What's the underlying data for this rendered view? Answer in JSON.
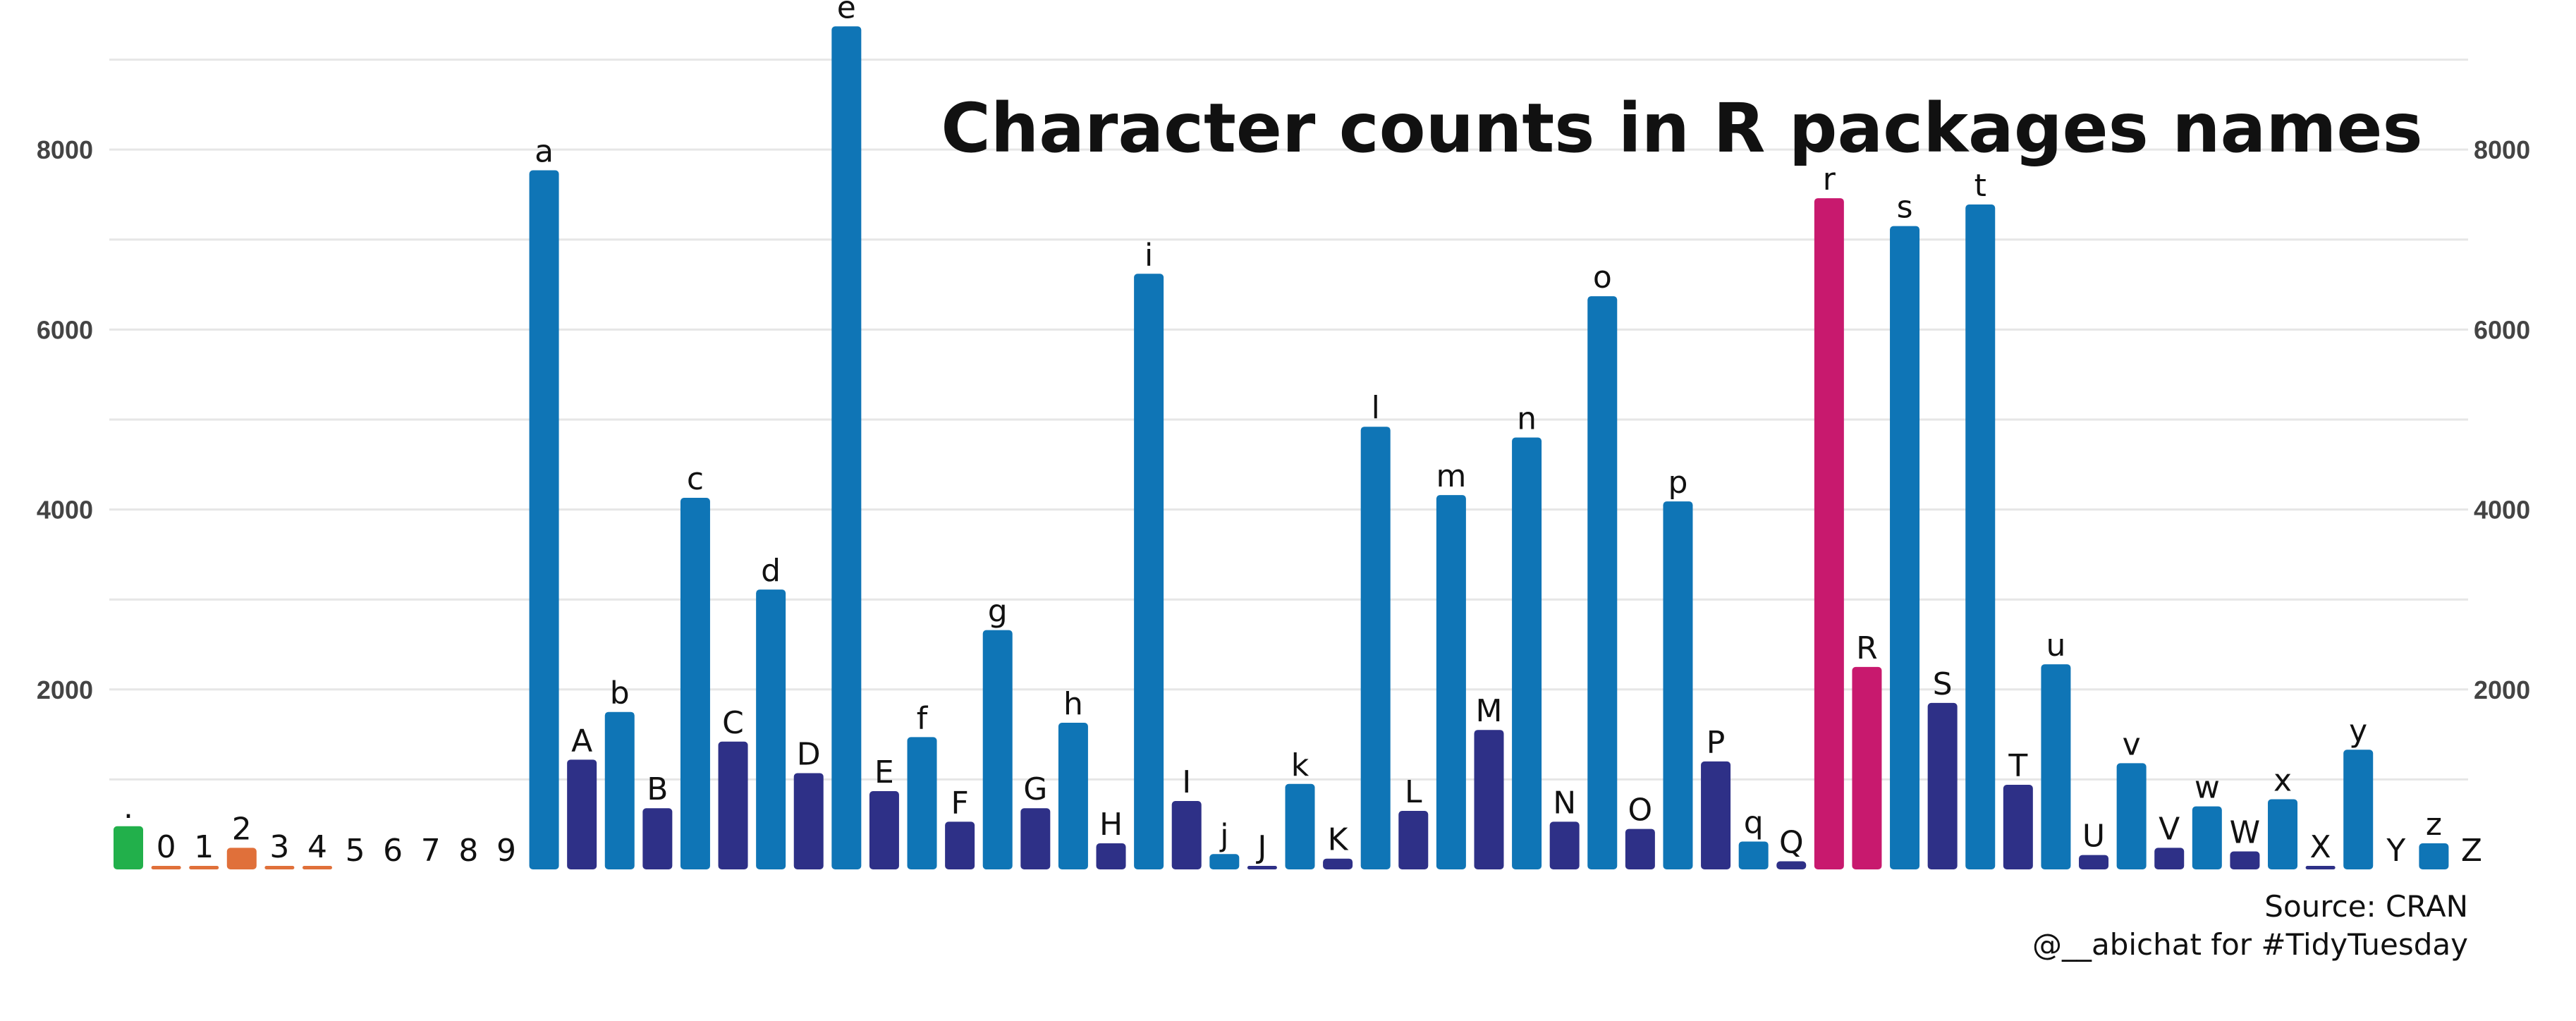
{
  "chart_data": {
    "type": "bar",
    "title": "Character counts in R packages names",
    "caption_source": "Source: CRAN",
    "caption_credit": "@__abichat for #TidyTuesday",
    "xlabel": "",
    "ylabel": "",
    "ylim": [
      0,
      9600
    ],
    "y_ticks": [
      "2000",
      "4000",
      "6000",
      "8000"
    ],
    "y_tick_values": [
      2000,
      4000,
      6000,
      8000
    ],
    "grid": true,
    "colors": {
      "punctuation": "#22b04b",
      "digit": "#e0703a",
      "lowercase": "#0f75b6",
      "uppercase": "#2e3087",
      "highlight": "#c8196e"
    },
    "bars": [
      {
        "label": ".",
        "value": 480,
        "group": "punctuation"
      },
      {
        "label": "0",
        "value": 18,
        "group": "digit"
      },
      {
        "label": "1",
        "value": 28,
        "group": "digit"
      },
      {
        "label": "2",
        "value": 240,
        "group": "digit"
      },
      {
        "label": "3",
        "value": 22,
        "group": "digit"
      },
      {
        "label": "4",
        "value": 22,
        "group": "digit"
      },
      {
        "label": "5",
        "value": 0,
        "group": "digit"
      },
      {
        "label": "6",
        "value": 0,
        "group": "digit"
      },
      {
        "label": "7",
        "value": 0,
        "group": "digit"
      },
      {
        "label": "8",
        "value": 0,
        "group": "digit"
      },
      {
        "label": "9",
        "value": 0,
        "group": "digit"
      },
      {
        "label": "a",
        "value": 7770,
        "group": "lowercase"
      },
      {
        "label": "A",
        "value": 1220,
        "group": "uppercase"
      },
      {
        "label": "b",
        "value": 1750,
        "group": "lowercase"
      },
      {
        "label": "B",
        "value": 680,
        "group": "uppercase"
      },
      {
        "label": "c",
        "value": 4130,
        "group": "lowercase"
      },
      {
        "label": "C",
        "value": 1420,
        "group": "uppercase"
      },
      {
        "label": "d",
        "value": 3110,
        "group": "lowercase"
      },
      {
        "label": "D",
        "value": 1070,
        "group": "uppercase"
      },
      {
        "label": "e",
        "value": 9370,
        "group": "lowercase"
      },
      {
        "label": "E",
        "value": 870,
        "group": "uppercase"
      },
      {
        "label": "f",
        "value": 1470,
        "group": "lowercase"
      },
      {
        "label": "F",
        "value": 530,
        "group": "uppercase"
      },
      {
        "label": "g",
        "value": 2660,
        "group": "lowercase"
      },
      {
        "label": "G",
        "value": 680,
        "group": "uppercase"
      },
      {
        "label": "h",
        "value": 1630,
        "group": "lowercase"
      },
      {
        "label": "H",
        "value": 290,
        "group": "uppercase"
      },
      {
        "label": "i",
        "value": 6620,
        "group": "lowercase"
      },
      {
        "label": "I",
        "value": 760,
        "group": "uppercase"
      },
      {
        "label": "j",
        "value": 170,
        "group": "lowercase"
      },
      {
        "label": "J",
        "value": 35,
        "group": "uppercase"
      },
      {
        "label": "k",
        "value": 950,
        "group": "lowercase"
      },
      {
        "label": "K",
        "value": 120,
        "group": "uppercase"
      },
      {
        "label": "l",
        "value": 4920,
        "group": "lowercase"
      },
      {
        "label": "L",
        "value": 650,
        "group": "uppercase"
      },
      {
        "label": "m",
        "value": 4160,
        "group": "lowercase"
      },
      {
        "label": "M",
        "value": 1550,
        "group": "uppercase"
      },
      {
        "label": "n",
        "value": 4800,
        "group": "lowercase"
      },
      {
        "label": "N",
        "value": 530,
        "group": "uppercase"
      },
      {
        "label": "o",
        "value": 6370,
        "group": "lowercase"
      },
      {
        "label": "O",
        "value": 450,
        "group": "uppercase"
      },
      {
        "label": "p",
        "value": 4090,
        "group": "lowercase"
      },
      {
        "label": "P",
        "value": 1200,
        "group": "uppercase"
      },
      {
        "label": "q",
        "value": 310,
        "group": "lowercase"
      },
      {
        "label": "Q",
        "value": 90,
        "group": "uppercase"
      },
      {
        "label": "r",
        "value": 7460,
        "group": "highlight"
      },
      {
        "label": "R",
        "value": 2250,
        "group": "highlight"
      },
      {
        "label": "s",
        "value": 7150,
        "group": "lowercase"
      },
      {
        "label": "S",
        "value": 1850,
        "group": "uppercase"
      },
      {
        "label": "t",
        "value": 7390,
        "group": "lowercase"
      },
      {
        "label": "T",
        "value": 940,
        "group": "uppercase"
      },
      {
        "label": "u",
        "value": 2280,
        "group": "lowercase"
      },
      {
        "label": "U",
        "value": 160,
        "group": "uppercase"
      },
      {
        "label": "v",
        "value": 1180,
        "group": "lowercase"
      },
      {
        "label": "V",
        "value": 240,
        "group": "uppercase"
      },
      {
        "label": "w",
        "value": 700,
        "group": "lowercase"
      },
      {
        "label": "W",
        "value": 200,
        "group": "uppercase"
      },
      {
        "label": "x",
        "value": 780,
        "group": "lowercase"
      },
      {
        "label": "X",
        "value": 35,
        "group": "uppercase"
      },
      {
        "label": "y",
        "value": 1330,
        "group": "lowercase"
      },
      {
        "label": "Y",
        "value": 0,
        "group": "uppercase"
      },
      {
        "label": "z",
        "value": 290,
        "group": "lowercase"
      },
      {
        "label": "Z",
        "value": 0,
        "group": "uppercase"
      }
    ]
  }
}
